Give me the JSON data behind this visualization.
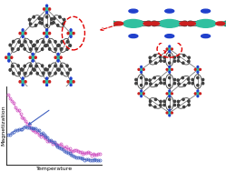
{
  "background_color": "#ffffff",
  "plot_bg_color": "#ffffff",
  "pink_curve_color": "#d050c0",
  "blue_curve_color": "#4060c0",
  "metal_color": "#30c0a0",
  "oxygen_color": "#cc2020",
  "nitrogen_color": "#2040cc",
  "carbon_color": "#404040",
  "bond_color": "#606060",
  "highlight_color": "#e00000",
  "xlabel": "Temperature",
  "ylabel": "Magnetization",
  "arrow_color": "#4060c0",
  "temp_arrow_color": "#222222"
}
